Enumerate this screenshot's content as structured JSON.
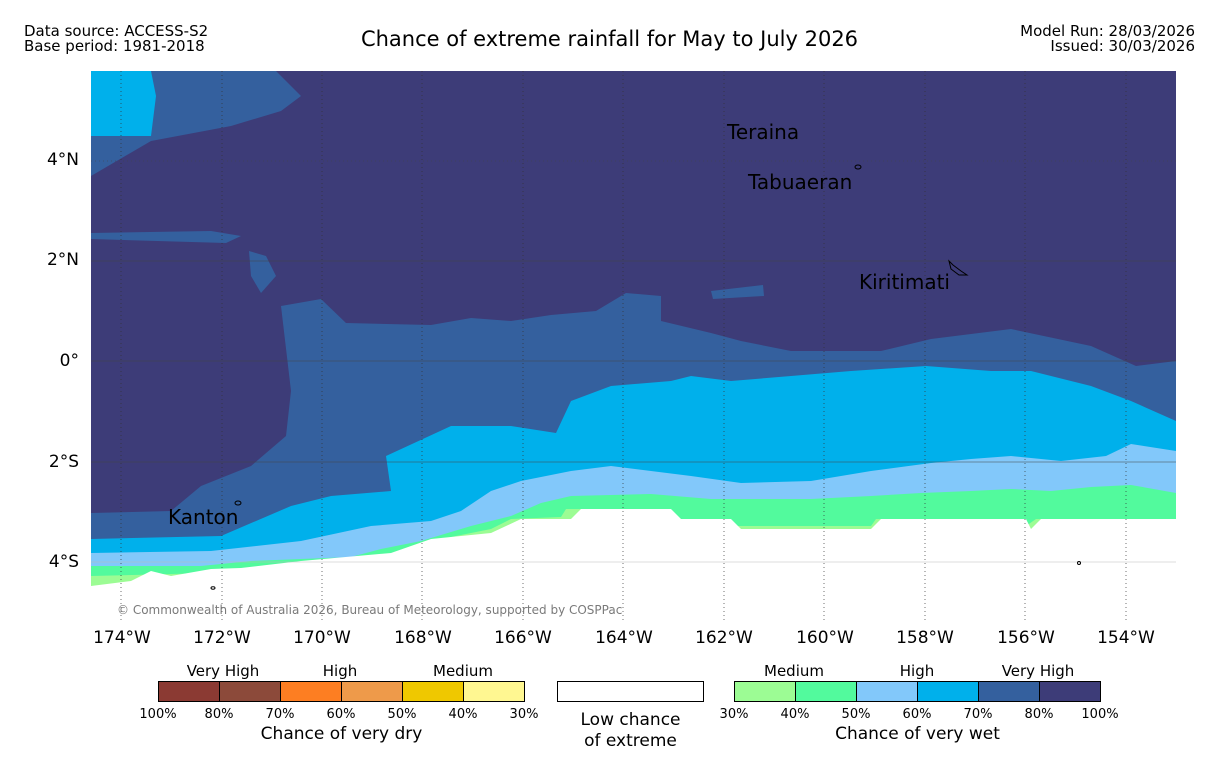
{
  "header": {
    "source_line": "Data source: ACCESS-S2",
    "base_line": "Base period: 1981-2018",
    "title": "Chance of extreme rainfall for May to July 2026",
    "run_line": "Model Run: 28/03/2026",
    "issued_line": "Issued: 30/03/2026"
  },
  "map": {
    "y_labels": [
      "4°N",
      "2°N",
      "0°",
      "2°S",
      "4°S"
    ],
    "x_labels": [
      "174°W",
      "172°W",
      "170°W",
      "168°W",
      "166°W",
      "164°W",
      "162°W",
      "160°W",
      "158°W",
      "156°W",
      "154°W"
    ],
    "places": [
      "Teraina",
      "Tabuaeran",
      "Kiritimati",
      "Kanton"
    ],
    "copyright": "© Commonwealth of Australia 2026, Bureau of Meteorology, supported by COSPPac"
  },
  "legend": {
    "dry": {
      "groups": [
        "Very High",
        "High",
        "Medium"
      ],
      "colors": [
        "#8b3a33",
        "#8c4a3a",
        "#fd7e22",
        "#ee9a4a",
        "#efc800",
        "#fff791"
      ],
      "ticks": [
        "100%",
        "80%",
        "70%",
        "60%",
        "50%",
        "40%",
        "30%"
      ],
      "caption": "Chance of very dry"
    },
    "neutral": {
      "color": "#ffffff",
      "caption_line1": "Low chance",
      "caption_line2": "of extreme"
    },
    "wet": {
      "groups": [
        "Medium",
        "High",
        "Very High"
      ],
      "colors": [
        "#9cfc94",
        "#52fa9d",
        "#82c8fa",
        "#00b0eb",
        "#34609e",
        "#3d3c78"
      ],
      "ticks": [
        "30%",
        "40%",
        "50%",
        "60%",
        "70%",
        "80%",
        "100%"
      ],
      "caption": "Chance of very wet"
    }
  }
}
